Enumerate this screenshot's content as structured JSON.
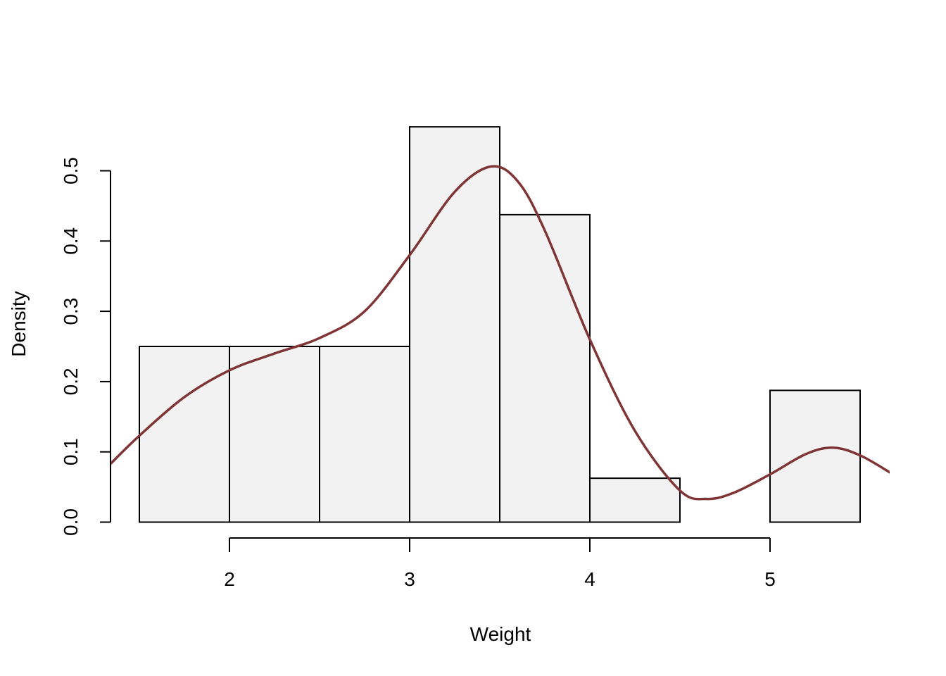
{
  "chart_data": {
    "type": "bar",
    "title": "",
    "xlabel": "Weight",
    "ylabel": "Density",
    "xlim": [
      1.34,
      5.67
    ],
    "ylim": [
      0,
      0.5
    ],
    "xticks": [
      2,
      3,
      4,
      5
    ],
    "yticks": [
      0.0,
      0.1,
      0.2,
      0.3,
      0.4,
      0.5
    ],
    "xtick_labels": [
      "2",
      "3",
      "4",
      "5"
    ],
    "ytick_labels": [
      "0.0",
      "0.1",
      "0.2",
      "0.3",
      "0.4",
      "0.5"
    ],
    "grid": false,
    "legend": "none",
    "histogram": {
      "bin_edges": [
        1.5,
        2.0,
        2.5,
        3.0,
        3.5,
        4.0,
        4.5,
        5.0,
        5.5
      ],
      "densities": [
        0.25,
        0.25,
        0.25,
        0.5625,
        0.4375,
        0.0625,
        0.0,
        0.1875
      ],
      "fill": "#f2f2f2",
      "stroke": "#000000"
    },
    "density_curve": {
      "color": "#7f3535",
      "x": [
        1.34,
        1.5,
        1.75,
        2.0,
        2.25,
        2.5,
        2.75,
        3.0,
        3.25,
        3.45,
        3.6,
        3.75,
        4.0,
        4.25,
        4.5,
        4.65,
        4.8,
        5.0,
        5.2,
        5.35,
        5.5,
        5.67
      ],
      "y": [
        0.083,
        0.123,
        0.178,
        0.216,
        0.24,
        0.262,
        0.3,
        0.38,
        0.47,
        0.506,
        0.485,
        0.415,
        0.26,
        0.13,
        0.045,
        0.033,
        0.042,
        0.068,
        0.097,
        0.106,
        0.095,
        0.07
      ]
    }
  }
}
